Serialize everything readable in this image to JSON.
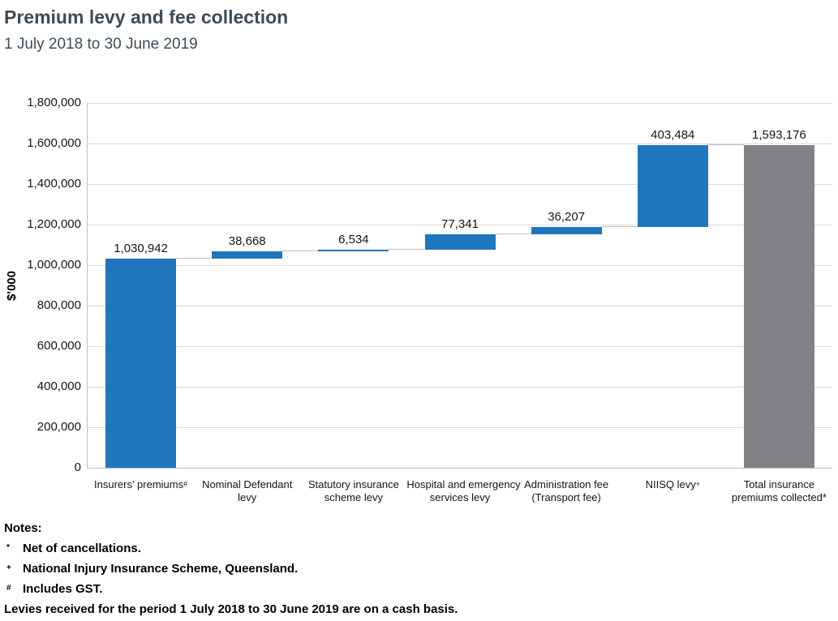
{
  "header": {
    "title": "Premium levy and fee collection",
    "subtitle": "1 July 2018 to 30 June 2019"
  },
  "chart_data": {
    "type": "waterfall-bar",
    "title": "Premium levy and fee collection",
    "subtitle": "1 July 2018 to 30 June 2019",
    "ylabel": "$'000",
    "ylim": [
      0,
      1800000
    ],
    "ytick_step": 200000,
    "grid": true,
    "legend": "none",
    "colors": {
      "delta": "#2076BC",
      "total": "#808285",
      "gridline": "#D9D9D9",
      "axis": "#BFBFBF",
      "connector": "#BFBFBF"
    },
    "bars": [
      {
        "kind": "delta",
        "value": 1030942,
        "display": "1,030,942",
        "label_lines": [
          {
            "text": "Insurers' premiums",
            "sup": "#"
          }
        ]
      },
      {
        "kind": "delta",
        "value": 38668,
        "display": "38,668",
        "label_lines": [
          {
            "text": "Nominal Defendant"
          },
          {
            "text": "levy"
          }
        ]
      },
      {
        "kind": "delta",
        "value": 6534,
        "display": "6,534",
        "label_lines": [
          {
            "text": "Statutory insurance"
          },
          {
            "text": "scheme levy"
          }
        ]
      },
      {
        "kind": "delta",
        "value": 77341,
        "display": "77,341",
        "label_lines": [
          {
            "text": "Hospital and emergency"
          },
          {
            "text": "services levy"
          }
        ]
      },
      {
        "kind": "delta",
        "value": 36207,
        "display": "36,207",
        "label_lines": [
          {
            "text": "Administration fee"
          },
          {
            "text": "(Transport fee)"
          }
        ]
      },
      {
        "kind": "delta",
        "value": 403484,
        "display": "403,484",
        "label_lines": [
          {
            "text": "NIISQ levy",
            "sup": "+"
          }
        ]
      },
      {
        "kind": "total",
        "value": 1593176,
        "display": "1,593,176",
        "label_lines": [
          {
            "text": "Total insurance"
          },
          {
            "text": "premiums collected*"
          }
        ]
      }
    ]
  },
  "notes": {
    "heading": "Notes:",
    "items": [
      {
        "marker": "*",
        "text": "Net of cancellations."
      },
      {
        "marker": "+",
        "text": "National Injury Insurance Scheme, Queensland."
      },
      {
        "marker": "#",
        "text": "Includes GST."
      }
    ],
    "footer": "Levies received for the period 1 July 2018 to 30 June 2019 are on a cash basis."
  }
}
